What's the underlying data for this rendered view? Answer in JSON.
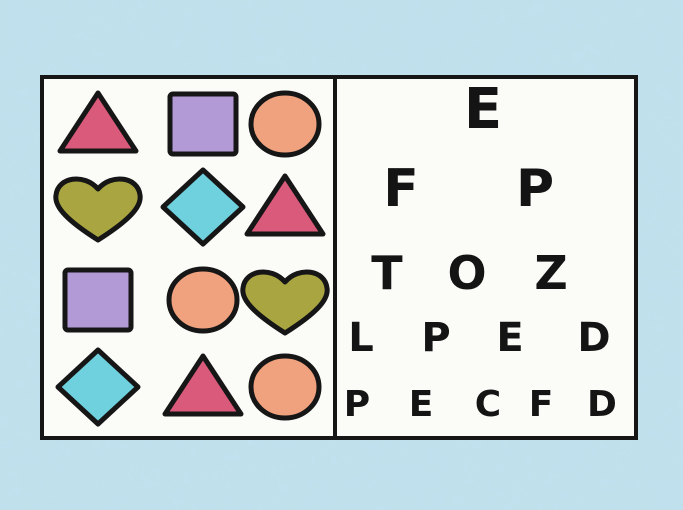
{
  "colors": {
    "background": "#bfe0ec",
    "card": "#fbfbf8",
    "outline": "#161616",
    "triangle": "#d95a7a",
    "square": "#b29ad6",
    "circle": "#f0a27e",
    "heart": "#a9a642",
    "diamond": "#6fd0de"
  },
  "shape_grid": {
    "rows": [
      [
        "triangle",
        "square",
        "circle"
      ],
      [
        "heart",
        "diamond",
        "triangle"
      ],
      [
        "square",
        "circle",
        "heart"
      ],
      [
        "diamond",
        "triangle",
        "circle"
      ]
    ]
  },
  "eye_chart": {
    "rows": [
      [
        "E"
      ],
      [
        "F",
        "P"
      ],
      [
        "T",
        "O",
        "Z"
      ],
      [
        "L",
        "P",
        "E",
        "D"
      ],
      [
        "P",
        "E",
        "C",
        "F",
        "D"
      ]
    ]
  }
}
